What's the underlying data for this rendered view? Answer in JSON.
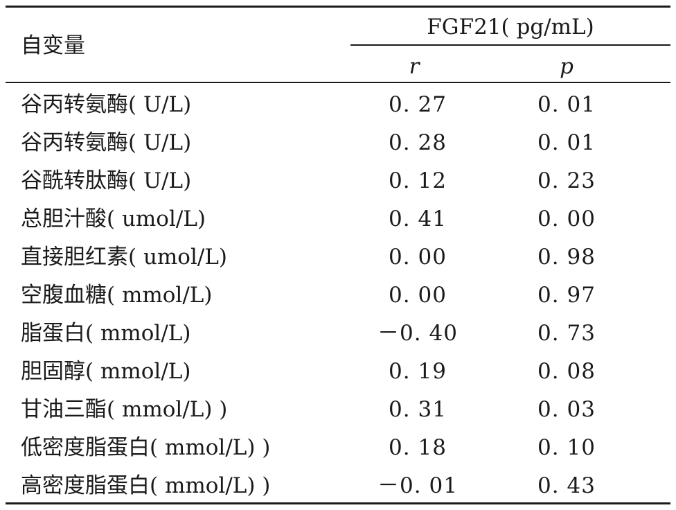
{
  "table": {
    "corner_label": "自变量",
    "group_label": "FGF21( pg/mL)",
    "col_r": "r",
    "col_p": "p",
    "rows": [
      {
        "name": "谷丙转氨酶( U/L)",
        "r": "0. 27",
        "p": "0. 01"
      },
      {
        "name": "谷丙转氨酶( U/L)",
        "r": "0. 28",
        "p": "0. 01"
      },
      {
        "name": "谷酰转肽酶( U/L)",
        "r": "0. 12",
        "p": "0. 23"
      },
      {
        "name": "总胆汁酸( umol/L)",
        "r": "0. 41",
        "p": "0. 00"
      },
      {
        "name": "直接胆红素( umol/L)",
        "r": "0. 00",
        "p": "0. 98"
      },
      {
        "name": "空腹血糖( mmol/L)",
        "r": "0. 00",
        "p": "0. 97"
      },
      {
        "name": "脂蛋白( mmol/L)",
        "r": "－0. 40",
        "p": "0. 73"
      },
      {
        "name": "胆固醇( mmol/L)",
        "r": "0. 19",
        "p": "0. 08"
      },
      {
        "name": "甘油三酯( mmol/L) )",
        "r": "0. 31",
        "p": "0. 03"
      },
      {
        "name": "低密度脂蛋白( mmol/L) )",
        "r": "0. 18",
        "p": "0. 10"
      },
      {
        "name": "高密度脂蛋白( mmol/L) )",
        "r": "－0. 01",
        "p": "0. 43"
      }
    ]
  }
}
